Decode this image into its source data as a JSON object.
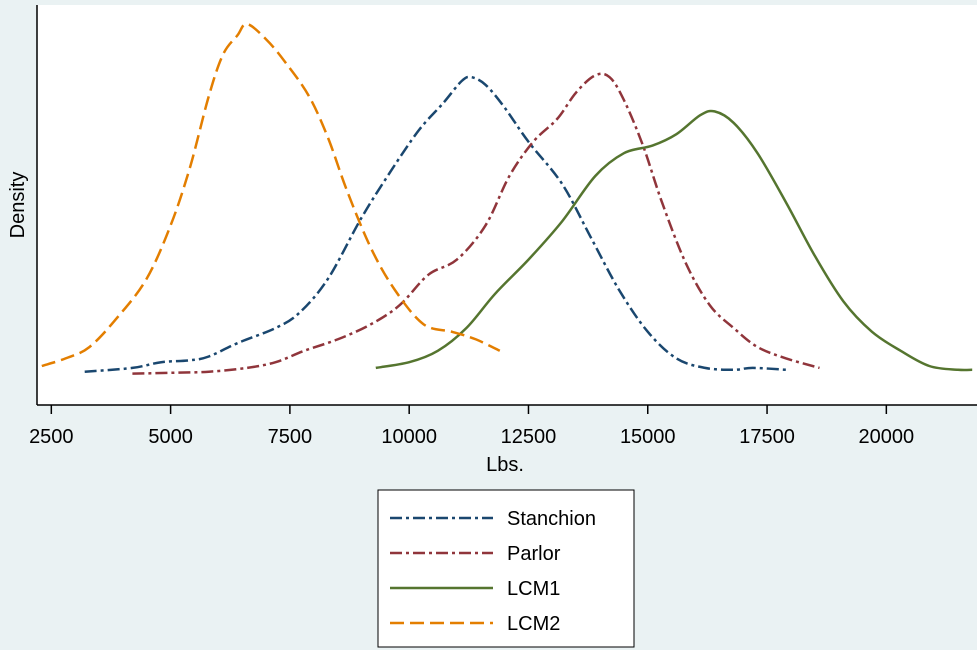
{
  "chart_data": {
    "type": "line",
    "title": "",
    "xlabel": "Lbs.",
    "ylabel": "Density",
    "xlim": [
      2200,
      21900
    ],
    "ylim": [
      0,
      1.0
    ],
    "x_ticks": [
      "2500",
      "5000",
      "7500",
      "10000",
      "12500",
      "15000",
      "17500",
      "20000"
    ],
    "x_tick_values": [
      2500,
      5000,
      7500,
      10000,
      12500,
      15000,
      17500,
      20000
    ],
    "grid": false,
    "legend_position": "bottom",
    "series": [
      {
        "name": "Stanchion",
        "color": "#1a476f",
        "dash": "dash-dot",
        "points": [
          [
            3200,
            0.035
          ],
          [
            4200,
            0.045
          ],
          [
            4800,
            0.06
          ],
          [
            5400,
            0.065
          ],
          [
            5800,
            0.075
          ],
          [
            6400,
            0.11
          ],
          [
            7200,
            0.15
          ],
          [
            7700,
            0.19
          ],
          [
            8300,
            0.28
          ],
          [
            9000,
            0.44
          ],
          [
            9600,
            0.56
          ],
          [
            10200,
            0.67
          ],
          [
            10700,
            0.74
          ],
          [
            11100,
            0.8
          ],
          [
            11300,
            0.81
          ],
          [
            11600,
            0.79
          ],
          [
            12000,
            0.73
          ],
          [
            12500,
            0.64
          ],
          [
            13200,
            0.53
          ],
          [
            13800,
            0.39
          ],
          [
            14400,
            0.25
          ],
          [
            15000,
            0.14
          ],
          [
            15600,
            0.07
          ],
          [
            16200,
            0.045
          ],
          [
            16800,
            0.04
          ],
          [
            17200,
            0.045
          ],
          [
            17900,
            0.04
          ]
        ]
      },
      {
        "name": "Parlor",
        "color": "#90353b",
        "dash": "dash-dot",
        "points": [
          [
            4200,
            0.03
          ],
          [
            5000,
            0.032
          ],
          [
            5800,
            0.035
          ],
          [
            6600,
            0.045
          ],
          [
            7200,
            0.06
          ],
          [
            7800,
            0.09
          ],
          [
            8500,
            0.12
          ],
          [
            9200,
            0.16
          ],
          [
            9800,
            0.21
          ],
          [
            10400,
            0.29
          ],
          [
            11000,
            0.33
          ],
          [
            11600,
            0.42
          ],
          [
            12100,
            0.55
          ],
          [
            12600,
            0.64
          ],
          [
            13100,
            0.7
          ],
          [
            13500,
            0.77
          ],
          [
            13900,
            0.815
          ],
          [
            14200,
            0.81
          ],
          [
            14500,
            0.75
          ],
          [
            14900,
            0.63
          ],
          [
            15300,
            0.48
          ],
          [
            15800,
            0.32
          ],
          [
            16300,
            0.21
          ],
          [
            16800,
            0.15
          ],
          [
            17300,
            0.1
          ],
          [
            17900,
            0.07
          ],
          [
            18600,
            0.045
          ]
        ]
      },
      {
        "name": "LCM1",
        "color": "#55752f",
        "dash": "solid",
        "points": [
          [
            9300,
            0.045
          ],
          [
            10000,
            0.06
          ],
          [
            10600,
            0.09
          ],
          [
            11200,
            0.15
          ],
          [
            11800,
            0.24
          ],
          [
            12500,
            0.33
          ],
          [
            13200,
            0.43
          ],
          [
            13900,
            0.55
          ],
          [
            14500,
            0.61
          ],
          [
            15100,
            0.63
          ],
          [
            15600,
            0.66
          ],
          [
            16100,
            0.71
          ],
          [
            16400,
            0.72
          ],
          [
            16800,
            0.69
          ],
          [
            17300,
            0.61
          ],
          [
            17900,
            0.48
          ],
          [
            18500,
            0.34
          ],
          [
            19100,
            0.22
          ],
          [
            19700,
            0.14
          ],
          [
            20300,
            0.09
          ],
          [
            20900,
            0.05
          ],
          [
            21500,
            0.04
          ],
          [
            21800,
            0.04
          ]
        ]
      },
      {
        "name": "LCM2",
        "color": "#e37e00",
        "dash": "dashed",
        "points": [
          [
            2300,
            0.05
          ],
          [
            2800,
            0.07
          ],
          [
            3300,
            0.1
          ],
          [
            3900,
            0.18
          ],
          [
            4500,
            0.28
          ],
          [
            5000,
            0.42
          ],
          [
            5400,
            0.57
          ],
          [
            5800,
            0.76
          ],
          [
            6100,
            0.87
          ],
          [
            6400,
            0.92
          ],
          [
            6600,
            0.95
          ],
          [
            7000,
            0.91
          ],
          [
            7400,
            0.85
          ],
          [
            7900,
            0.76
          ],
          [
            8300,
            0.65
          ],
          [
            8700,
            0.51
          ],
          [
            9200,
            0.36
          ],
          [
            9700,
            0.25
          ],
          [
            10300,
            0.16
          ],
          [
            10900,
            0.14
          ],
          [
            11400,
            0.12
          ],
          [
            11900,
            0.09
          ]
        ]
      }
    ]
  }
}
